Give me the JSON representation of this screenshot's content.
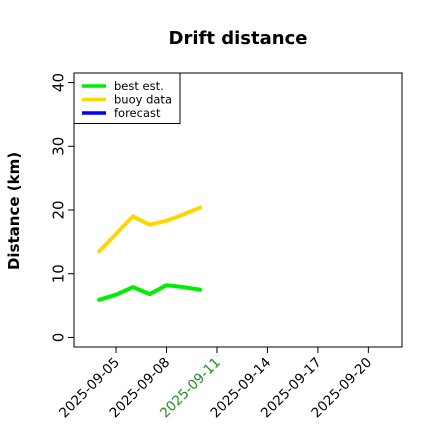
{
  "chart_data": {
    "type": "line",
    "title": "Drift distance",
    "xlabel": "",
    "ylabel": "Distance (km)",
    "ylim": [
      -1.5,
      41.5
    ],
    "yticks": [
      0,
      10,
      20,
      30,
      40
    ],
    "xlim": [
      "2025-09-02T12:00",
      "2025-09-22T00:00"
    ],
    "xticks": [
      {
        "label": "2025-09-05",
        "value": "2025-09-05",
        "color": "#000000"
      },
      {
        "label": "2025-09-08",
        "value": "2025-09-08",
        "color": "#000000"
      },
      {
        "label": "2025-09-11",
        "value": "2025-09-11",
        "color": "#228B22"
      },
      {
        "label": "2025-09-14",
        "value": "2025-09-14",
        "color": "#000000"
      },
      {
        "label": "2025-09-17",
        "value": "2025-09-17",
        "color": "#000000"
      },
      {
        "label": "2025-09-20",
        "value": "2025-09-20",
        "color": "#000000"
      }
    ],
    "grid": false,
    "legend_position": "top-left",
    "series": [
      {
        "name": "best est.",
        "color": "#00ee00",
        "points": [
          {
            "x": "2025-09-04",
            "y": 5.9
          },
          {
            "x": "2025-09-05",
            "y": 6.7
          },
          {
            "x": "2025-09-06",
            "y": 7.9
          },
          {
            "x": "2025-09-07",
            "y": 6.8
          },
          {
            "x": "2025-09-08",
            "y": 8.2
          },
          {
            "x": "2025-09-09",
            "y": 7.9
          },
          {
            "x": "2025-09-10",
            "y": 7.5
          }
        ]
      },
      {
        "name": "buoy data",
        "color": "#ffd700",
        "points": [
          {
            "x": "2025-09-04",
            "y": 13.5
          },
          {
            "x": "2025-09-06",
            "y": 19.0
          },
          {
            "x": "2025-09-07",
            "y": 17.7
          },
          {
            "x": "2025-09-08",
            "y": 18.3
          },
          {
            "x": "2025-09-09",
            "y": 19.3
          },
          {
            "x": "2025-09-10",
            "y": 20.4
          }
        ]
      },
      {
        "name": "forecast",
        "color": "#0000ff",
        "points": []
      }
    ]
  }
}
